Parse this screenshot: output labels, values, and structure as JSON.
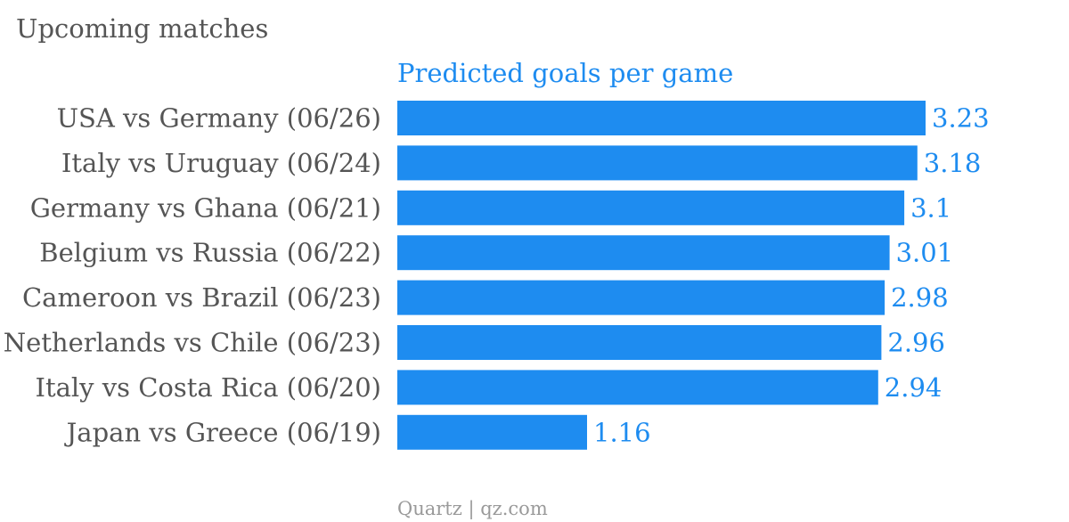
{
  "chart_data": {
    "type": "bar",
    "orientation": "horizontal",
    "title": "Upcoming matches",
    "categories": [
      "USA vs Germany (06/26)",
      "Italy vs Uruguay (06/24)",
      "Germany vs Ghana (06/21)",
      "Belgium vs Russia (06/22)",
      "Cameroon vs Brazil (06/23)",
      "Netherlands vs Chile (06/23)",
      "Italy vs Costa Rica (06/20)",
      "Japan vs Greece (06/19)"
    ],
    "series": [
      {
        "name": "Predicted goals per game",
        "values": [
          3.23,
          3.18,
          3.1,
          3.01,
          2.98,
          2.96,
          2.94,
          1.16
        ],
        "labels": [
          "3.23",
          "3.18",
          "3.1",
          "3.01",
          "2.98",
          "2.96",
          "2.94",
          "1.16"
        ]
      }
    ],
    "xlim": [
      0,
      3.23
    ],
    "grid": false,
    "colors": {
      "bar": "#1e8cf0",
      "value_text": "#1e8cf0",
      "category_text": "#555555"
    }
  },
  "footer": {
    "source": "Quartz | qz.com"
  }
}
